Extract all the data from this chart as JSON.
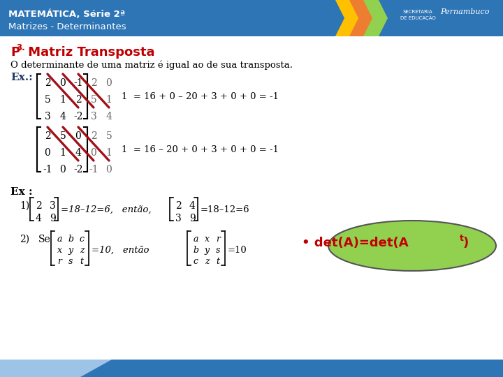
{
  "header_bg": "#2e75b6",
  "header_text1": "MATEMÁTICA, Série 2ª",
  "header_text2": "Matrizes - Determinantes",
  "body_text": "O determinante de uma matriz é igual ao de sua transposta.",
  "eq1": "1  = 16 + 0 – 20 + 3 + 0 + 0 = -1",
  "eq2": "1  = 16 – 20 + 0 + 3 + 0 + 0 = -1",
  "bubble_text": "• det(A)=det(At)",
  "bubble_color": "#92d050",
  "bubble_text_color": "#c00000",
  "red_color": "#c00000",
  "dark_blue": "#1f3864",
  "body_bg": "#ffffff",
  "chevron_colors": [
    "#ffc000",
    "#ed7d31",
    "#92d050"
  ],
  "footer_light": "#9dc3e6"
}
